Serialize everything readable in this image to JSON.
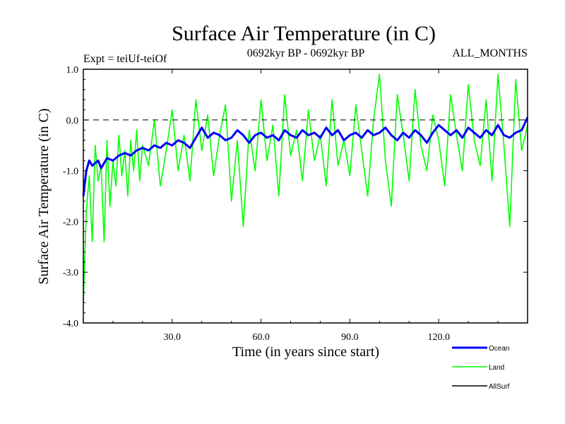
{
  "chart_data": {
    "type": "line",
    "title": "Surface Air Temperature (in C)",
    "subtitle_left": "Expt = teiUf-teiOf",
    "subtitle_center": "0692kyr BP - 0692kyr BP",
    "subtitle_right": "ALL_MONTHS",
    "xlabel": "Time (in years since start)",
    "ylabel": "Surface Air Temperature (in C)",
    "xlim": [
      0,
      150
    ],
    "ylim": [
      -4.0,
      1.0
    ],
    "x_ticks": [
      30,
      60,
      90,
      120
    ],
    "x_tick_labels": [
      "30.0",
      "60.0",
      "90.0",
      "120.0"
    ],
    "y_ticks": [
      1.0,
      0.0,
      -1.0,
      -2.0,
      -3.0,
      -4.0
    ],
    "y_tick_labels": [
      "1.0",
      "0.0",
      "-1.0",
      "-2.0",
      "-3.0",
      "-4.0"
    ],
    "reference_line": 0.0,
    "series": [
      {
        "name": "Land",
        "color": "#00ff00",
        "x": [
          0,
          1,
          2,
          3,
          4,
          5,
          6,
          7,
          8,
          9,
          10,
          11,
          12,
          13,
          14,
          15,
          16,
          17,
          18,
          19,
          20,
          22,
          24,
          26,
          28,
          30,
          32,
          34,
          36,
          38,
          40,
          42,
          44,
          46,
          48,
          50,
          52,
          54,
          56,
          58,
          60,
          62,
          64,
          66,
          68,
          70,
          72,
          74,
          76,
          78,
          80,
          82,
          84,
          86,
          88,
          90,
          92,
          94,
          96,
          98,
          100,
          102,
          104,
          106,
          108,
          110,
          112,
          114,
          116,
          118,
          120,
          122,
          124,
          126,
          128,
          130,
          132,
          134,
          136,
          138,
          140,
          142,
          144,
          146,
          148,
          150
        ],
        "values": [
          -3.6,
          -1.8,
          -1.1,
          -2.4,
          -0.5,
          -1.2,
          -0.9,
          -2.4,
          -0.4,
          -1.7,
          -0.8,
          -1.3,
          -0.3,
          -1.1,
          -0.6,
          -1.5,
          -0.4,
          -1.0,
          -0.2,
          -1.2,
          -0.5,
          -0.9,
          0.0,
          -1.3,
          -0.6,
          0.2,
          -1.0,
          -0.3,
          -1.2,
          0.4,
          -0.6,
          0.1,
          -1.1,
          -0.3,
          0.3,
          -1.6,
          -0.4,
          -2.1,
          -0.2,
          -1.0,
          0.4,
          -0.8,
          -0.1,
          -1.5,
          0.5,
          -0.7,
          -0.2,
          -1.2,
          0.2,
          -0.8,
          -0.3,
          -1.3,
          0.4,
          -0.9,
          -0.4,
          -1.1,
          0.3,
          -0.6,
          -1.5,
          0.0,
          0.9,
          -0.8,
          -1.7,
          0.5,
          -0.3,
          -1.2,
          0.6,
          -0.5,
          -1.0,
          0.1,
          -0.4,
          -1.3,
          0.5,
          -0.3,
          -1.0,
          0.7,
          -0.4,
          -0.9,
          0.4,
          -1.2,
          0.9,
          -0.5,
          -2.1,
          0.8,
          -0.6,
          -0.1
        ],
        "dash": "solid"
      },
      {
        "name": "Ocean",
        "color": "#0000ff",
        "x": [
          0,
          1,
          2,
          3,
          4,
          5,
          6,
          8,
          10,
          12,
          14,
          16,
          18,
          20,
          22,
          24,
          26,
          28,
          30,
          32,
          34,
          36,
          38,
          40,
          42,
          44,
          46,
          48,
          50,
          52,
          54,
          56,
          58,
          60,
          62,
          64,
          66,
          68,
          70,
          72,
          74,
          76,
          78,
          80,
          82,
          84,
          86,
          88,
          90,
          92,
          94,
          96,
          98,
          100,
          102,
          104,
          106,
          108,
          110,
          112,
          114,
          116,
          118,
          120,
          122,
          124,
          126,
          128,
          130,
          132,
          134,
          136,
          138,
          140,
          142,
          144,
          146,
          148,
          150
        ],
        "values": [
          -1.5,
          -1.0,
          -0.8,
          -0.9,
          -0.85,
          -0.8,
          -0.95,
          -0.75,
          -0.8,
          -0.7,
          -0.65,
          -0.7,
          -0.6,
          -0.55,
          -0.6,
          -0.5,
          -0.55,
          -0.45,
          -0.5,
          -0.4,
          -0.45,
          -0.55,
          -0.35,
          -0.15,
          -0.35,
          -0.25,
          -0.3,
          -0.4,
          -0.35,
          -0.2,
          -0.3,
          -0.45,
          -0.3,
          -0.25,
          -0.35,
          -0.3,
          -0.4,
          -0.2,
          -0.3,
          -0.35,
          -0.2,
          -0.3,
          -0.25,
          -0.35,
          -0.15,
          -0.3,
          -0.2,
          -0.4,
          -0.3,
          -0.25,
          -0.35,
          -0.2,
          -0.3,
          -0.25,
          -0.15,
          -0.3,
          -0.4,
          -0.25,
          -0.35,
          -0.2,
          -0.3,
          -0.45,
          -0.25,
          -0.1,
          -0.2,
          -0.3,
          -0.2,
          -0.35,
          -0.15,
          -0.25,
          -0.35,
          -0.2,
          -0.3,
          -0.1,
          -0.3,
          -0.35,
          -0.25,
          -0.2,
          0.05
        ],
        "dash": "solid"
      },
      {
        "name": "AllSurf",
        "color": "#000000",
        "x": [],
        "values": [],
        "dash": "solid"
      }
    ],
    "legend": {
      "placement": "bottom-right",
      "entries": [
        "Ocean",
        "Land",
        "AllSurf"
      ]
    }
  }
}
